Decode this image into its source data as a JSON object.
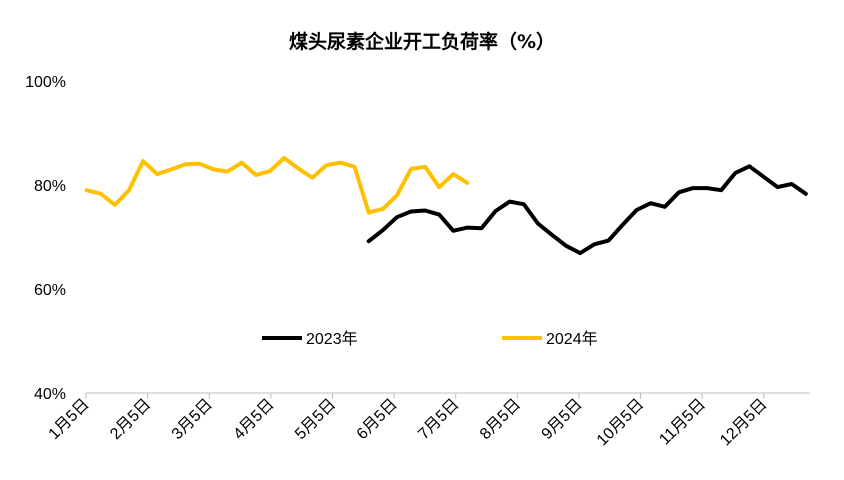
{
  "chart_data": {
    "type": "line",
    "title": "煤头尿素企业开工负荷率（%）",
    "xlabel": "",
    "ylabel": "",
    "x_ticks": [
      "1月5日",
      "2月5日",
      "3月5日",
      "4月5日",
      "5月5日",
      "6月5日",
      "7月5日",
      "8月5日",
      "9月5日",
      "10月5日",
      "11月5日",
      "12月5日"
    ],
    "x_range_weeks": [
      0,
      51
    ],
    "y_ticks": [
      "40%",
      "60%",
      "80%",
      "100%"
    ],
    "ylim": [
      40,
      100
    ],
    "grid": false,
    "legend_placement": "center",
    "series": [
      {
        "name": "2023年",
        "color": "#000000",
        "x": [
          20,
          21,
          22,
          23,
          24,
          25,
          26,
          27,
          28,
          29,
          30,
          31,
          32,
          33,
          34,
          35,
          36,
          37,
          38,
          39,
          40,
          41,
          42,
          43,
          44,
          45,
          46,
          47,
          48,
          49,
          50,
          51
        ],
        "values": [
          69.2,
          71.3,
          73.8,
          74.9,
          75.1,
          74.3,
          71.2,
          71.8,
          71.7,
          75.0,
          76.8,
          76.3,
          72.6,
          70.4,
          68.3,
          66.9,
          68.6,
          69.3,
          72.3,
          75.2,
          76.5,
          75.8,
          78.6,
          79.4,
          79.4,
          79.0,
          82.3,
          83.6,
          81.6,
          79.6,
          80.2,
          78.3
        ]
      },
      {
        "name": "2024年",
        "color": "#FFC000",
        "x": [
          0,
          1,
          2,
          3,
          4,
          5,
          6,
          7,
          8,
          9,
          10,
          11,
          12,
          13,
          14,
          15,
          16,
          17,
          18,
          19,
          20,
          21,
          22,
          23,
          24,
          25,
          26,
          27
        ],
        "values": [
          79.0,
          78.3,
          76.2,
          79.0,
          84.6,
          82.1,
          83.0,
          84.0,
          84.1,
          83.0,
          82.6,
          84.3,
          81.9,
          82.7,
          85.2,
          83.2,
          81.4,
          83.8,
          84.3,
          83.5,
          74.7,
          75.4,
          78.0,
          83.1,
          83.5,
          79.6,
          82.1,
          80.4
        ]
      }
    ]
  }
}
